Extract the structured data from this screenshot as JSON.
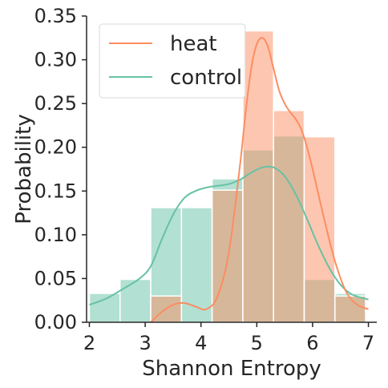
{
  "chart_data": {
    "type": "bar",
    "xlabel": "Shannon Entropy",
    "ylabel": "Probability",
    "xlim": [
      1.95,
      7.15
    ],
    "ylim": [
      0,
      0.35
    ],
    "xticks": [
      2,
      3,
      4,
      5,
      6,
      7
    ],
    "yticks": [
      0.0,
      0.05,
      0.1,
      0.15,
      0.2,
      0.25,
      0.3,
      0.35
    ],
    "ytick_labels": [
      "0.00",
      "0.05",
      "0.10",
      "0.15",
      "0.20",
      "0.25",
      "0.30",
      "0.35"
    ],
    "xtick_labels": [
      "2",
      "3",
      "4",
      "5",
      "6",
      "7"
    ],
    "grid": false,
    "legend_position": "top-left",
    "bin_edges": [
      2.0,
      2.55,
      3.1,
      3.65,
      4.2,
      4.75,
      5.3,
      5.85,
      6.4,
      6.95
    ],
    "series": [
      {
        "name": "heat",
        "color": "#fc8d62",
        "hist": [
          0,
          0,
          0.03,
          0,
          0.151,
          0.333,
          0.242,
          0.212,
          0.03
        ],
        "kde": {
          "x": [
            3.1,
            3.3,
            3.5,
            3.7,
            3.9,
            4.1,
            4.3,
            4.5,
            4.7,
            4.8,
            4.9,
            5.0,
            5.1,
            5.2,
            5.3,
            5.4,
            5.5,
            5.6,
            5.7,
            5.8,
            5.9,
            6.0,
            6.2,
            6.4,
            6.6,
            6.8,
            7.0
          ],
          "y": [
            0.0,
            0.012,
            0.02,
            0.022,
            0.018,
            0.015,
            0.03,
            0.08,
            0.18,
            0.24,
            0.29,
            0.318,
            0.325,
            0.315,
            0.29,
            0.265,
            0.25,
            0.24,
            0.232,
            0.22,
            0.2,
            0.175,
            0.12,
            0.07,
            0.035,
            0.02,
            0.015
          ]
        }
      },
      {
        "name": "control",
        "color": "#66c2a5",
        "hist": [
          0.033,
          0.049,
          0.131,
          0.131,
          0.164,
          0.197,
          0.213,
          0.049,
          0.033
        ],
        "kde": {
          "x": [
            2.0,
            2.3,
            2.6,
            2.9,
            3.1,
            3.3,
            3.5,
            3.7,
            3.9,
            4.1,
            4.3,
            4.5,
            4.7,
            4.9,
            5.1,
            5.3,
            5.5,
            5.7,
            5.9,
            6.1,
            6.3,
            6.5,
            6.7,
            7.0
          ],
          "y": [
            0.02,
            0.027,
            0.038,
            0.05,
            0.064,
            0.095,
            0.123,
            0.142,
            0.15,
            0.154,
            0.156,
            0.158,
            0.163,
            0.171,
            0.177,
            0.177,
            0.167,
            0.146,
            0.118,
            0.088,
            0.062,
            0.043,
            0.032,
            0.026
          ]
        }
      }
    ]
  }
}
